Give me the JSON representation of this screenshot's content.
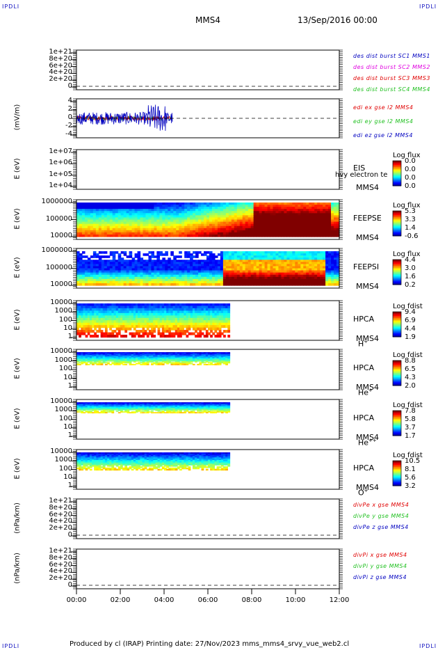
{
  "corners": {
    "tl": "IPDLI",
    "tr": "IPDLI",
    "bl": "IPDLI",
    "br": "IPDLI"
  },
  "header": {
    "spacecraft": "MMS4",
    "date": "13/Sep/2016 00:00"
  },
  "footer": {
    "text": "Produced by cl (IRAP)   Printing date: 27/Nov/2023   mms_mms4_srvy_vue_web2.cl"
  },
  "colors": {
    "red": "#e00000",
    "magenta": "#e000e0",
    "green": "#20c020",
    "blue": "#0000c0",
    "black": "#000000"
  },
  "chart_data": {
    "type": "line",
    "x_axis": {
      "ticks": [
        "00:00",
        "02:00",
        "04:00",
        "06:00",
        "08:00",
        "10:00",
        "12:00"
      ],
      "range_hours": [
        0,
        12
      ]
    },
    "panels": [
      {
        "id": "dist",
        "ylabel": "",
        "ticks": [
          "1e+21",
          "8e+20",
          "6e+20",
          "4e+20",
          "2e+20",
          "0"
        ],
        "legend": [
          {
            "text": "des dist burst SC1 MMS1",
            "color": "#0000c0"
          },
          {
            "text": "des dist burst SC2 MMS2",
            "color": "#e000e0"
          },
          {
            "text": "des dist burst SC3 MMS3",
            "color": "#e00000"
          },
          {
            "text": "des dist burst SC4 MMS4",
            "color": "#20c020"
          }
        ],
        "dashed_zero": true
      },
      {
        "id": "edi",
        "ylabel": "(mV/m)",
        "ticks": [
          "4",
          "2",
          "0",
          "-2",
          "-4"
        ],
        "legend": [
          {
            "text": "edi ex gse l2 MMS4",
            "color": "#e00000"
          },
          {
            "text": "edi ey gse l2 MMS4",
            "color": "#20c020"
          },
          {
            "text": "edi ez gse l2 MMS4",
            "color": "#0000c0"
          }
        ],
        "series": [
          {
            "name": "edi ex gse l2 MMS4",
            "range_hours": [
              0,
              4.4
            ],
            "amplitude_mV_m": 1.5
          },
          {
            "name": "edi ey gse l2 MMS4",
            "range_hours": [
              0,
              4.4
            ],
            "amplitude_mV_m": 1.5
          },
          {
            "name": "edi ez gse l2 MMS4",
            "range_hours": [
              0,
              4.4
            ],
            "amplitude_mV_m": 4.5
          }
        ],
        "dashed_zero": true
      },
      {
        "id": "eis",
        "ylabel": "E (eV)",
        "ticks": [
          "1e+07",
          "1e+06",
          "1e+05",
          "1e+04"
        ],
        "inst": "EIS",
        "note": "hvy electron te",
        "sc": "MMS4",
        "cbar": {
          "title": "Log flux",
          "values": [
            "0.0",
            "0.0",
            "0.0",
            "0.0"
          ]
        }
      },
      {
        "id": "feepse",
        "ylabel": "E (eV)",
        "ticks": [
          "1000000",
          "100000",
          "10000"
        ],
        "inst": "FEEPSE",
        "sc": "MMS4",
        "cbar": {
          "title": "Log flux",
          "values": [
            "5.3",
            "3.3",
            "1.4",
            "-0.6"
          ]
        }
      },
      {
        "id": "feepsi",
        "ylabel": "E (eV)",
        "ticks": [
          "1000000",
          "100000",
          "10000"
        ],
        "inst": "FEEPSI",
        "sc": "MMS4",
        "cbar": {
          "title": "Log flux",
          "values": [
            "4.4",
            "3.0",
            "1.6",
            "0.2"
          ]
        }
      },
      {
        "id": "hpca_h",
        "ylabel": "E (eV)",
        "ticks": [
          "10000",
          "1000",
          "100",
          "10",
          "1"
        ],
        "inst": "HPCA",
        "sc": "MMS4",
        "species": "H",
        "sup": "+",
        "cbar": {
          "title": "Log fdist",
          "values": [
            "9.4",
            "6.9",
            "4.4",
            "1.9"
          ]
        }
      },
      {
        "id": "hpca_he",
        "ylabel": "E (eV)",
        "ticks": [
          "10000",
          "1000",
          "100",
          "10",
          "1"
        ],
        "inst": "HPCA",
        "sc": "MMS4",
        "species": "He",
        "sup": "+",
        "cbar": {
          "title": "Log fdist",
          "values": [
            "8.8",
            "6.5",
            "4.3",
            "2.0"
          ]
        }
      },
      {
        "id": "hpca_hepp",
        "ylabel": "E (eV)",
        "ticks": [
          "10000",
          "1000",
          "100",
          "10",
          "1"
        ],
        "inst": "HPCA",
        "sc": "MMS4",
        "species": "He",
        "sup": "++",
        "cbar": {
          "title": "Log fdist",
          "values": [
            "7.8",
            "5.8",
            "3.7",
            "1.7"
          ]
        }
      },
      {
        "id": "hpca_o",
        "ylabel": "E (eV)",
        "ticks": [
          "10000",
          "1000",
          "100",
          "10",
          "1"
        ],
        "inst": "HPCA",
        "sc": "MMS4",
        "species": "O",
        "sup": "+",
        "cbar": {
          "title": "Log fdist",
          "values": [
            "10.5",
            "8.1",
            "5.6",
            "3.2"
          ]
        }
      },
      {
        "id": "divpe",
        "ylabel": "(nPa/km)",
        "ticks": [
          "1e+21",
          "8e+20",
          "6e+20",
          "4e+20",
          "2e+20",
          "0"
        ],
        "legend": [
          {
            "text": "divPe x gse MMS4",
            "color": "#e00000"
          },
          {
            "text": "divPe y gse MMS4",
            "color": "#20c020"
          },
          {
            "text": "divPe z gse MMS4",
            "color": "#0000c0"
          }
        ],
        "dashed_zero": true
      },
      {
        "id": "divpi",
        "ylabel": "(nPa/km)",
        "ticks": [
          "1e+21",
          "8e+20",
          "6e+20",
          "4e+20",
          "2e+20",
          "0"
        ],
        "legend": [
          {
            "text": "divPi x gse MMS4",
            "color": "#e00000"
          },
          {
            "text": "divPi y gse MMS4",
            "color": "#20c020"
          },
          {
            "text": "divPi z gse MMS4",
            "color": "#0000c0"
          }
        ],
        "dashed_zero": true
      }
    ],
    "hpca_data_end_hours": 7.0,
    "feeps_hot_interval_hours": [
      8.0,
      11.6
    ]
  }
}
